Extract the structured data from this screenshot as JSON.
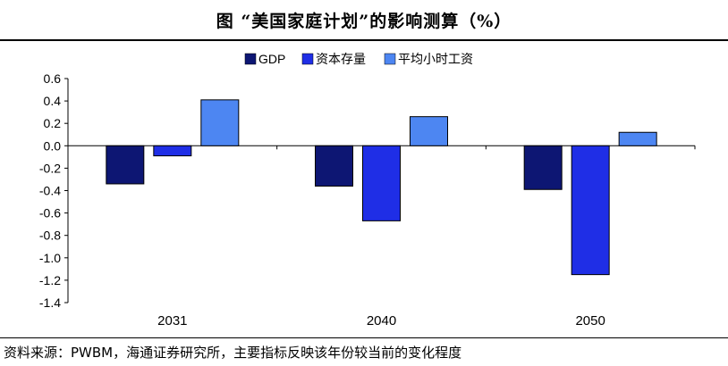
{
  "title": "图  “美国家庭计划”的影响测算（%）",
  "source": "资料来源：PWBM，海通证券研究所，主要指标反映该年份较当前的变化程度",
  "chart_data": {
    "type": "bar",
    "categories": [
      "2031",
      "2040",
      "2050"
    ],
    "series": [
      {
        "name": "GDP",
        "values": [
          -0.34,
          -0.36,
          -0.39
        ],
        "color": "#0d1673"
      },
      {
        "name": "资本存量",
        "values": [
          -0.09,
          -0.67,
          -1.15
        ],
        "color": "#1f2ee6"
      },
      {
        "name": "平均小时工资",
        "values": [
          0.41,
          0.26,
          0.12
        ],
        "color": "#4d86f2"
      }
    ],
    "ylim": [
      -1.4,
      0.6
    ],
    "yticks": [
      "0.6",
      "0.4",
      "0.2",
      "0.0",
      "-0.2",
      "-0.4",
      "-0.6",
      "-0.8",
      "-1.0",
      "-1.2",
      "-1.4"
    ],
    "legend_position": "top-center",
    "grid": false
  }
}
